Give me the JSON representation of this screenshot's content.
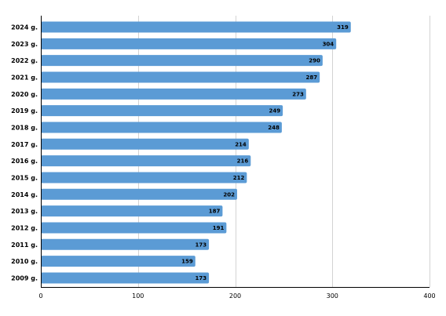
{
  "chart_data": {
    "type": "bar",
    "orientation": "horizontal",
    "title": "",
    "xlabel": "",
    "ylabel": "",
    "categories": [
      "2024 g.",
      "2023 g.",
      "2022 g.",
      "2021 g.",
      "2020 g.",
      "2019 g.",
      "2018 g.",
      "2017 g.",
      "2016 g.",
      "2015 g.",
      "2014 g.",
      "2013 g.",
      "2012 g.",
      "2011 g.",
      "2010 g.",
      "2009 g."
    ],
    "values": [
      319,
      304,
      290,
      287,
      273,
      249,
      248,
      214,
      216,
      212,
      202,
      187,
      191,
      173,
      159,
      173
    ],
    "xlim": [
      0,
      400
    ],
    "x_ticks": [
      0,
      100,
      200,
      300,
      400
    ],
    "x_tick_labels": [
      "0",
      "100",
      "200",
      "300",
      "400"
    ],
    "grid": true,
    "legend": "none",
    "bar_color": "#5b9bd5"
  }
}
